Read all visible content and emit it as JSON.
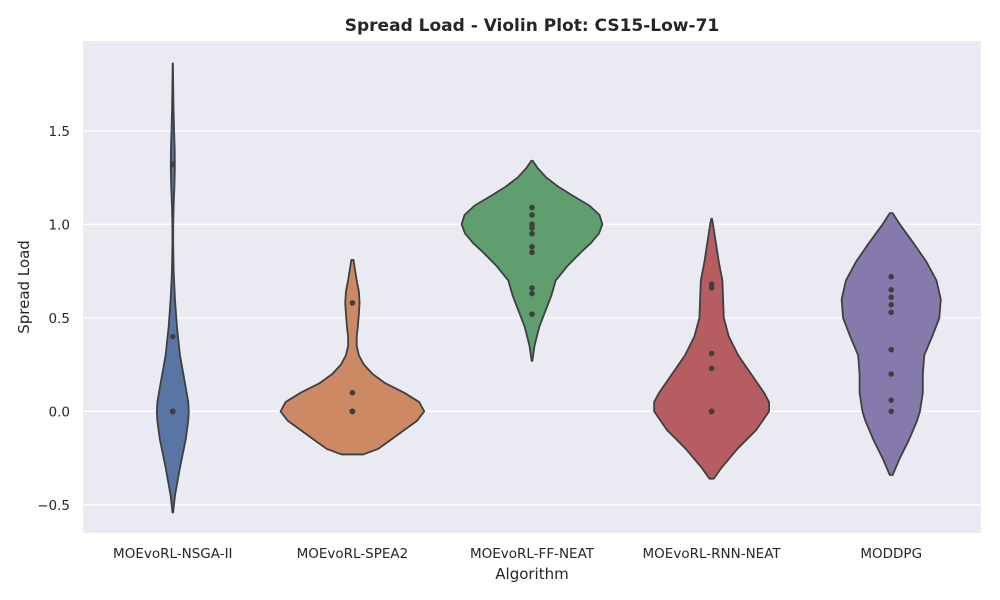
{
  "chart_data": {
    "type": "violin",
    "title": "Spread Load - Violin Plot: CS15-Low-71",
    "xlabel": "Algorithm",
    "ylabel": "Spread Load",
    "ylim": [
      -0.65,
      1.98
    ],
    "yticks": [
      -0.5,
      0.0,
      0.5,
      1.0,
      1.5
    ],
    "ytick_labels": [
      "−0.5",
      "0.0",
      "0.5",
      "1.0",
      "1.5"
    ],
    "grid": true,
    "colors": {
      "background": "#EAEAF2",
      "grid": "#FFFFFF",
      "outline": "#3F3F3F",
      "points": "#3F3F3F"
    },
    "categories": [
      "MOEvoRL-NSGA-II",
      "MOEvoRL-SPEA2",
      "MOEvoRL-FF-NEAT",
      "MOEvoRL-RNN-NEAT",
      "MODDPG"
    ],
    "series": [
      {
        "category": "MOEvoRL-NSGA-II",
        "color": "#5875A4",
        "points": [
          0.0,
          0.0,
          0.0,
          0.0,
          0.0,
          0.0,
          0.4,
          1.32
        ],
        "violin_profile": [
          [
            -0.54,
            0.005
          ],
          [
            -0.45,
            0.03
          ],
          [
            -0.3,
            0.1
          ],
          [
            -0.15,
            0.18
          ],
          [
            -0.05,
            0.215
          ],
          [
            0.0,
            0.222
          ],
          [
            0.05,
            0.215
          ],
          [
            0.15,
            0.17
          ],
          [
            0.3,
            0.1
          ],
          [
            0.45,
            0.058
          ],
          [
            0.6,
            0.03
          ],
          [
            0.75,
            0.012
          ],
          [
            0.9,
            0.005
          ],
          [
            1.0,
            0.006
          ],
          [
            1.1,
            0.012
          ],
          [
            1.2,
            0.022
          ],
          [
            1.3,
            0.028
          ],
          [
            1.4,
            0.026
          ],
          [
            1.5,
            0.018
          ],
          [
            1.62,
            0.01
          ],
          [
            1.75,
            0.005
          ],
          [
            1.86,
            0.002
          ]
        ]
      },
      {
        "category": "MOEvoRL-SPEA2",
        "color": "#CC8963",
        "points": [
          0.0,
          0.0,
          0.0,
          0.0,
          0.0,
          0.0,
          0.1,
          0.58
        ],
        "violin_profile": [
          [
            -0.23,
            0.15
          ],
          [
            -0.2,
            0.36
          ],
          [
            -0.15,
            0.54
          ],
          [
            -0.1,
            0.72
          ],
          [
            -0.05,
            0.9
          ],
          [
            0.0,
            1.0
          ],
          [
            0.05,
            0.93
          ],
          [
            0.1,
            0.72
          ],
          [
            0.15,
            0.46
          ],
          [
            0.2,
            0.28
          ],
          [
            0.25,
            0.16
          ],
          [
            0.3,
            0.09
          ],
          [
            0.35,
            0.06
          ],
          [
            0.4,
            0.06
          ],
          [
            0.45,
            0.075
          ],
          [
            0.52,
            0.09
          ],
          [
            0.58,
            0.1
          ],
          [
            0.64,
            0.09
          ],
          [
            0.7,
            0.06
          ],
          [
            0.76,
            0.035
          ],
          [
            0.81,
            0.015
          ]
        ]
      },
      {
        "category": "MOEvoRL-FF-NEAT",
        "color": "#5F9E6E",
        "points": [
          0.52,
          0.63,
          0.66,
          0.85,
          0.88,
          0.95,
          0.98,
          1.0,
          1.05,
          1.09
        ],
        "violin_profile": [
          [
            0.27,
            0.005
          ],
          [
            0.35,
            0.035
          ],
          [
            0.45,
            0.1
          ],
          [
            0.55,
            0.2
          ],
          [
            0.62,
            0.27
          ],
          [
            0.7,
            0.33
          ],
          [
            0.78,
            0.5
          ],
          [
            0.85,
            0.68
          ],
          [
            0.9,
            0.82
          ],
          [
            0.95,
            0.93
          ],
          [
            1.0,
            0.98
          ],
          [
            1.05,
            0.94
          ],
          [
            1.1,
            0.8
          ],
          [
            1.15,
            0.58
          ],
          [
            1.2,
            0.37
          ],
          [
            1.25,
            0.2
          ],
          [
            1.3,
            0.08
          ],
          [
            1.34,
            0.01
          ]
        ]
      },
      {
        "category": "MOEvoRL-RNN-NEAT",
        "color": "#B55D60",
        "points": [
          0.0,
          0.0,
          0.0,
          0.0,
          0.23,
          0.31,
          0.66,
          0.68
        ],
        "violin_profile": [
          [
            -0.36,
            0.03
          ],
          [
            -0.3,
            0.14
          ],
          [
            -0.2,
            0.36
          ],
          [
            -0.1,
            0.62
          ],
          [
            0.0,
            0.8
          ],
          [
            0.05,
            0.8
          ],
          [
            0.1,
            0.73
          ],
          [
            0.2,
            0.55
          ],
          [
            0.3,
            0.37
          ],
          [
            0.4,
            0.24
          ],
          [
            0.5,
            0.17
          ],
          [
            0.6,
            0.16
          ],
          [
            0.7,
            0.15
          ],
          [
            0.8,
            0.1
          ],
          [
            0.9,
            0.06
          ],
          [
            1.0,
            0.02
          ],
          [
            1.03,
            0.005
          ]
        ]
      },
      {
        "category": "MODDPG",
        "color": "#857AAB",
        "points": [
          0.0,
          0.06,
          0.2,
          0.33,
          0.53,
          0.57,
          0.61,
          0.65,
          0.72
        ],
        "violin_profile": [
          [
            -0.34,
            0.02
          ],
          [
            -0.25,
            0.12
          ],
          [
            -0.15,
            0.25
          ],
          [
            -0.05,
            0.36
          ],
          [
            0.0,
            0.4
          ],
          [
            0.1,
            0.44
          ],
          [
            0.2,
            0.44
          ],
          [
            0.3,
            0.46
          ],
          [
            0.4,
            0.57
          ],
          [
            0.5,
            0.67
          ],
          [
            0.6,
            0.69
          ],
          [
            0.7,
            0.63
          ],
          [
            0.8,
            0.49
          ],
          [
            0.9,
            0.31
          ],
          [
            1.0,
            0.12
          ],
          [
            1.06,
            0.02
          ]
        ]
      }
    ]
  }
}
